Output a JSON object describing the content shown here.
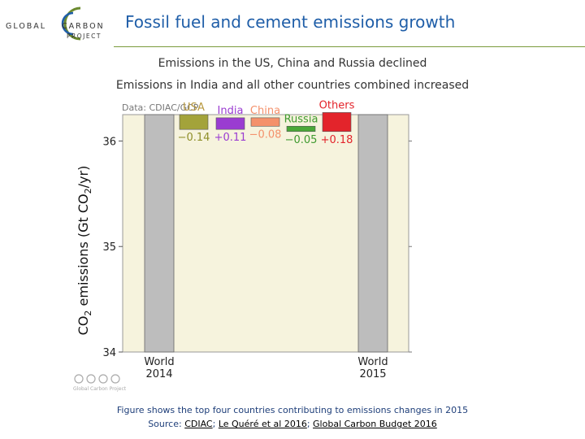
{
  "header": {
    "logo_text": {
      "line1a": "GLOBAL",
      "line1b": "CARBON",
      "line2": "PROJECT"
    },
    "title": "Fossil fuel and cement emissions growth"
  },
  "subtitles": [
    "Emissions in the US, China and Russia declined",
    "Emissions in India and all other countries combined increased"
  ],
  "chart_data": {
    "type": "bar",
    "subtype": "waterfall",
    "data_source_label": "Data: CDIAC/GCP",
    "ylabel": "CO2 emissions (Gt CO2/yr)",
    "ylim": [
      34,
      36.25
    ],
    "yticks": [
      34,
      35,
      36
    ],
    "grid": false,
    "panel_background": "#f6f3dd",
    "totals": [
      {
        "label_line1": "World",
        "label_line2": "2014",
        "value": 36.25
      },
      {
        "label_line1": "World",
        "label_line2": "2015",
        "value": 36.25
      }
    ],
    "changes": [
      {
        "name": "USA",
        "value": -0.14,
        "label": "−0.14",
        "color": "#a3a33a",
        "name_color": "#b8993f",
        "value_color": "#8f8f2a"
      },
      {
        "name": "India",
        "value": 0.11,
        "label": "+0.11",
        "color": "#9a3cd1",
        "name_color": "#9a3cd1",
        "value_color": "#9a3cd1"
      },
      {
        "name": "China",
        "value": -0.08,
        "label": "−0.08",
        "color": "#f4916b",
        "name_color": "#f4916b",
        "value_color": "#f4916b"
      },
      {
        "name": "Russia",
        "value": -0.05,
        "label": "−0.05",
        "color": "#4aa838",
        "name_color": "#3f9a2f",
        "value_color": "#3f9a2f"
      },
      {
        "name": "Others",
        "value": 0.18,
        "label": "+0.18",
        "color": "#e3242b",
        "name_color": "#e3242b",
        "value_color": "#e3242b"
      }
    ],
    "total_bar_color": "#bdbdbd",
    "license_text": "Global Carbon Project"
  },
  "captions": {
    "line1": "Figure shows the top four countries contributing to emissions changes in 2015",
    "line2_prefix": "Source: ",
    "link1": "CDIAC",
    "sep1": "; ",
    "link2": "Le Quéré et al 2016",
    "sep2": "; ",
    "link3": "Global Carbon Budget 2016"
  }
}
